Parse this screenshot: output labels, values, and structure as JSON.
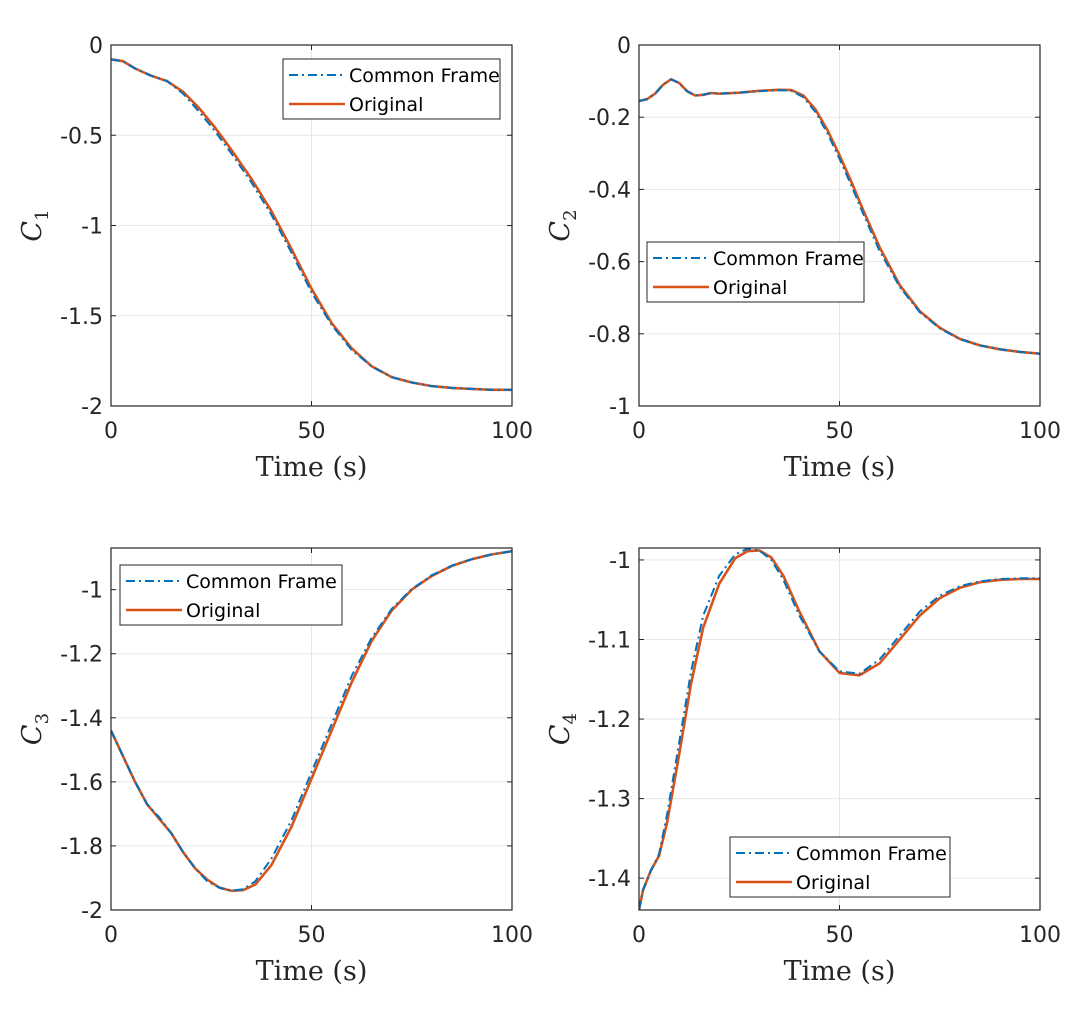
{
  "colors": {
    "common_frame": "#0072BD",
    "original": "#D95319",
    "grid": "#E6E6E6",
    "axis": "#262626"
  },
  "chart_data": [
    {
      "type": "line",
      "panel": "top-left",
      "xlabel": "Time (s)",
      "ylabel": "C",
      "ylabel_sub": "1",
      "xlim": [
        0,
        100
      ],
      "ylim": [
        -2,
        0
      ],
      "xticks": [
        0,
        50,
        100
      ],
      "xtick_labels": [
        "0",
        "50",
        "100"
      ],
      "yticks": [
        0,
        -0.5,
        -1,
        -1.5,
        -2
      ],
      "ytick_labels": [
        "0",
        "-0.5",
        "-1",
        "-1.5",
        "-2"
      ],
      "grid": true,
      "legend_position": "top-right",
      "series": [
        {
          "name": "Common Frame",
          "style": "dash-dot",
          "x": [
            0,
            3,
            6,
            10,
            14,
            18,
            22,
            26,
            30,
            35,
            40,
            45,
            50,
            55,
            60,
            65,
            70,
            75,
            80,
            85,
            90,
            95,
            100
          ],
          "y": [
            -0.08,
            -0.09,
            -0.13,
            -0.17,
            -0.2,
            -0.27,
            -0.37,
            -0.48,
            -0.6,
            -0.76,
            -0.94,
            -1.15,
            -1.37,
            -1.55,
            -1.69,
            -1.78,
            -1.84,
            -1.87,
            -1.89,
            -1.9,
            -1.905,
            -1.91,
            -1.91
          ]
        },
        {
          "name": "Original",
          "style": "solid",
          "x": [
            0,
            3,
            6,
            10,
            14,
            18,
            22,
            26,
            30,
            35,
            40,
            45,
            50,
            55,
            60,
            65,
            70,
            75,
            80,
            85,
            90,
            95,
            100
          ],
          "y": [
            -0.08,
            -0.09,
            -0.13,
            -0.17,
            -0.2,
            -0.26,
            -0.35,
            -0.46,
            -0.58,
            -0.74,
            -0.92,
            -1.13,
            -1.35,
            -1.54,
            -1.68,
            -1.78,
            -1.84,
            -1.87,
            -1.89,
            -1.9,
            -1.905,
            -1.91,
            -1.91
          ]
        }
      ]
    },
    {
      "type": "line",
      "panel": "top-right",
      "xlabel": "Time (s)",
      "ylabel": "C",
      "ylabel_sub": "2",
      "xlim": [
        0,
        100
      ],
      "ylim": [
        -1,
        0
      ],
      "xticks": [
        0,
        50,
        100
      ],
      "xtick_labels": [
        "0",
        "50",
        "100"
      ],
      "yticks": [
        0,
        -0.2,
        -0.4,
        -0.6,
        -0.8,
        -1
      ],
      "ytick_labels": [
        "0",
        "-0.2",
        "-0.4",
        "-0.6",
        "-0.8",
        "-1"
      ],
      "grid": true,
      "legend_position": "middle-left",
      "series": [
        {
          "name": "Common Frame",
          "style": "dash-dot",
          "x": [
            0,
            2,
            4,
            6,
            8,
            10,
            12,
            14,
            16,
            18,
            20,
            25,
            30,
            35,
            38,
            41,
            44,
            47,
            50,
            53,
            56,
            60,
            65,
            70,
            75,
            80,
            85,
            90,
            95,
            100
          ],
          "y": [
            -0.155,
            -0.15,
            -0.135,
            -0.11,
            -0.095,
            -0.105,
            -0.128,
            -0.14,
            -0.138,
            -0.133,
            -0.135,
            -0.132,
            -0.128,
            -0.125,
            -0.127,
            -0.145,
            -0.185,
            -0.245,
            -0.315,
            -0.39,
            -0.47,
            -0.57,
            -0.67,
            -0.74,
            -0.785,
            -0.815,
            -0.832,
            -0.843,
            -0.85,
            -0.855
          ]
        },
        {
          "name": "Original",
          "style": "solid",
          "x": [
            0,
            2,
            4,
            6,
            8,
            10,
            12,
            14,
            16,
            18,
            20,
            25,
            30,
            35,
            38,
            41,
            44,
            47,
            50,
            53,
            56,
            60,
            65,
            70,
            75,
            80,
            85,
            90,
            95,
            100
          ],
          "y": [
            -0.155,
            -0.15,
            -0.135,
            -0.11,
            -0.095,
            -0.105,
            -0.128,
            -0.14,
            -0.138,
            -0.133,
            -0.135,
            -0.132,
            -0.127,
            -0.124,
            -0.125,
            -0.14,
            -0.178,
            -0.236,
            -0.305,
            -0.38,
            -0.46,
            -0.56,
            -0.665,
            -0.737,
            -0.783,
            -0.814,
            -0.832,
            -0.843,
            -0.85,
            -0.855
          ]
        }
      ]
    },
    {
      "type": "line",
      "panel": "bottom-left",
      "xlabel": "Time (s)",
      "ylabel": "C",
      "ylabel_sub": "3",
      "xlim": [
        0,
        100
      ],
      "ylim": [
        -2,
        -0.87
      ],
      "xticks": [
        0,
        50,
        100
      ],
      "xtick_labels": [
        "0",
        "50",
        "100"
      ],
      "yticks": [
        -1,
        -1.2,
        -1.4,
        -1.6,
        -1.8,
        -2
      ],
      "ytick_labels": [
        "-1",
        "-1.2",
        "-1.4",
        "-1.6",
        "-1.8",
        "-2"
      ],
      "grid": true,
      "legend_position": "top-left",
      "series": [
        {
          "name": "Common Frame",
          "style": "dash-dot",
          "x": [
            0,
            3,
            6,
            9,
            12,
            15,
            18,
            21,
            24,
            27,
            30,
            33,
            36,
            40,
            45,
            50,
            55,
            60,
            65,
            70,
            75,
            80,
            85,
            90,
            95,
            100
          ],
          "y": [
            -1.44,
            -1.52,
            -1.6,
            -1.67,
            -1.71,
            -1.76,
            -1.82,
            -1.87,
            -1.91,
            -1.93,
            -1.94,
            -1.935,
            -1.91,
            -1.84,
            -1.72,
            -1.57,
            -1.42,
            -1.27,
            -1.15,
            -1.06,
            -0.998,
            -0.955,
            -0.925,
            -0.905,
            -0.89,
            -0.88
          ]
        },
        {
          "name": "Original",
          "style": "solid",
          "x": [
            0,
            3,
            6,
            9,
            12,
            15,
            18,
            21,
            24,
            27,
            30,
            33,
            36,
            40,
            45,
            50,
            55,
            60,
            65,
            70,
            75,
            80,
            85,
            90,
            95,
            100
          ],
          "y": [
            -1.44,
            -1.52,
            -1.6,
            -1.67,
            -1.715,
            -1.76,
            -1.82,
            -1.87,
            -1.905,
            -1.93,
            -1.94,
            -1.938,
            -1.92,
            -1.86,
            -1.74,
            -1.59,
            -1.44,
            -1.29,
            -1.16,
            -1.065,
            -1.0,
            -0.957,
            -0.926,
            -0.905,
            -0.89,
            -0.88
          ]
        }
      ]
    },
    {
      "type": "line",
      "panel": "bottom-right",
      "xlabel": "Time (s)",
      "ylabel": "C",
      "ylabel_sub": "4",
      "xlim": [
        0,
        100
      ],
      "ylim": [
        -1.44,
        -0.985
      ],
      "xticks": [
        0,
        50,
        100
      ],
      "xtick_labels": [
        "0",
        "50",
        "100"
      ],
      "yticks": [
        -1,
        -1.1,
        -1.2,
        -1.3,
        -1.4
      ],
      "ytick_labels": [
        "-1",
        "-1.1",
        "-1.2",
        "-1.3",
        "-1.4"
      ],
      "grid": true,
      "legend_position": "bottom-center",
      "series": [
        {
          "name": "Common Frame",
          "style": "dash-dot",
          "x": [
            0,
            1,
            3,
            5,
            7,
            10,
            13,
            16,
            20,
            24,
            27,
            30,
            33,
            36,
            40,
            45,
            50,
            55,
            60,
            65,
            70,
            75,
            80,
            85,
            90,
            95,
            100
          ],
          "y": [
            -1.44,
            -1.415,
            -1.39,
            -1.37,
            -1.32,
            -1.23,
            -1.14,
            -1.07,
            -1.02,
            -0.993,
            -0.986,
            -0.988,
            -1.0,
            -1.025,
            -1.07,
            -1.115,
            -1.14,
            -1.143,
            -1.125,
            -1.095,
            -1.065,
            -1.045,
            -1.033,
            -1.027,
            -1.024,
            -1.023,
            -1.023
          ]
        },
        {
          "name": "Original",
          "style": "solid",
          "x": [
            0,
            1,
            3,
            5,
            7,
            10,
            13,
            16,
            20,
            24,
            27,
            30,
            33,
            36,
            40,
            45,
            50,
            55,
            60,
            65,
            70,
            75,
            80,
            85,
            90,
            95,
            100
          ],
          "y": [
            -1.44,
            -1.415,
            -1.39,
            -1.372,
            -1.33,
            -1.245,
            -1.155,
            -1.085,
            -1.03,
            -0.998,
            -0.989,
            -0.988,
            -0.997,
            -1.02,
            -1.065,
            -1.115,
            -1.142,
            -1.145,
            -1.13,
            -1.1,
            -1.07,
            -1.048,
            -1.035,
            -1.028,
            -1.025,
            -1.024,
            -1.024
          ]
        }
      ]
    }
  ]
}
